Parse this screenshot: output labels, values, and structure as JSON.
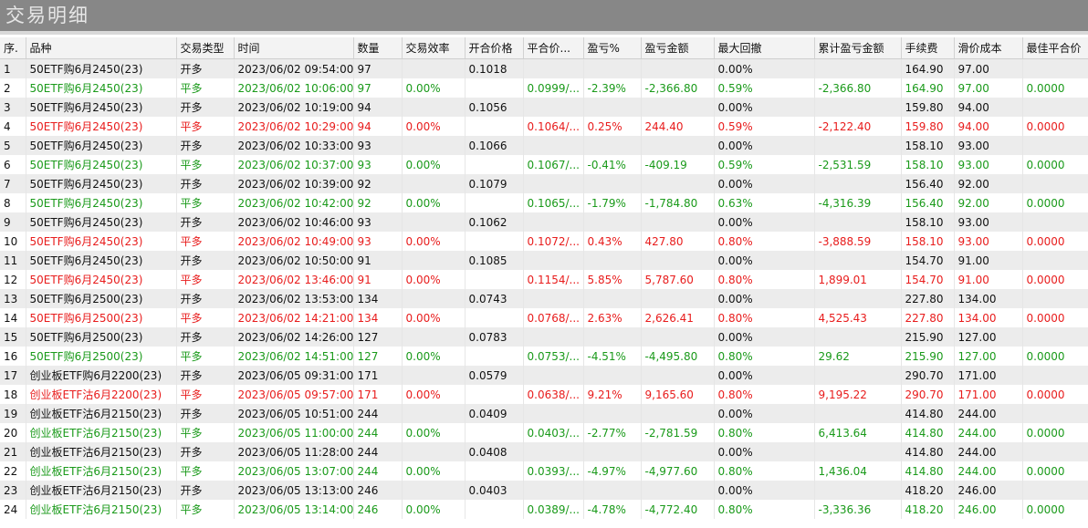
{
  "window": {
    "title": "交易明细"
  },
  "colors": {
    "green": "#1a9a1a",
    "red": "#e81c1c",
    "black": "#111111",
    "titlebar": "#878787"
  },
  "table": {
    "columns": [
      "序.",
      "品种",
      "交易类型",
      "时间",
      "数量",
      "交易效率",
      "开合价格",
      "平合价...",
      "盈亏%",
      "盈亏金额",
      "最大回撤",
      "累计盈亏金额",
      "手续费",
      "滑价成本",
      "最佳平合价"
    ],
    "rows": [
      {
        "seq": "1",
        "product": "50ETF购6月2450(23)",
        "type": "开多",
        "time": "2023/06/02 09:54:00",
        "qty": "97",
        "eff": "",
        "open": "0.1018",
        "close": "",
        "pct": "",
        "amount": "",
        "dd": "0.00%",
        "cum": "",
        "fee": "164.90",
        "slip": "97.00",
        "best": "",
        "color": "black"
      },
      {
        "seq": "2",
        "product": "50ETF购6月2450(23)",
        "type": "平多",
        "time": "2023/06/02 10:06:00",
        "qty": "97",
        "eff": "0.00%",
        "open": "",
        "close": "0.0999/...",
        "pct": "-2.39%",
        "amount": "-2,366.80",
        "dd": "0.59%",
        "cum": "-2,366.80",
        "fee": "164.90",
        "slip": "97.00",
        "best": "0.0000",
        "color": "green"
      },
      {
        "seq": "3",
        "product": "50ETF购6月2450(23)",
        "type": "开多",
        "time": "2023/06/02 10:19:00",
        "qty": "94",
        "eff": "",
        "open": "0.1056",
        "close": "",
        "pct": "",
        "amount": "",
        "dd": "0.00%",
        "cum": "",
        "fee": "159.80",
        "slip": "94.00",
        "best": "",
        "color": "black"
      },
      {
        "seq": "4",
        "product": "50ETF购6月2450(23)",
        "type": "平多",
        "time": "2023/06/02 10:29:00",
        "qty": "94",
        "eff": "0.00%",
        "open": "",
        "close": "0.1064/...",
        "pct": "0.25%",
        "amount": "244.40",
        "dd": "0.59%",
        "cum": "-2,122.40",
        "fee": "159.80",
        "slip": "94.00",
        "best": "0.0000",
        "color": "red"
      },
      {
        "seq": "5",
        "product": "50ETF购6月2450(23)",
        "type": "开多",
        "time": "2023/06/02 10:33:00",
        "qty": "93",
        "eff": "",
        "open": "0.1066",
        "close": "",
        "pct": "",
        "amount": "",
        "dd": "0.00%",
        "cum": "",
        "fee": "158.10",
        "slip": "93.00",
        "best": "",
        "color": "black"
      },
      {
        "seq": "6",
        "product": "50ETF购6月2450(23)",
        "type": "平多",
        "time": "2023/06/02 10:37:00",
        "qty": "93",
        "eff": "0.00%",
        "open": "",
        "close": "0.1067/...",
        "pct": "-0.41%",
        "amount": "-409.19",
        "dd": "0.59%",
        "cum": "-2,531.59",
        "fee": "158.10",
        "slip": "93.00",
        "best": "0.0000",
        "color": "green"
      },
      {
        "seq": "7",
        "product": "50ETF购6月2450(23)",
        "type": "开多",
        "time": "2023/06/02 10:39:00",
        "qty": "92",
        "eff": "",
        "open": "0.1079",
        "close": "",
        "pct": "",
        "amount": "",
        "dd": "0.00%",
        "cum": "",
        "fee": "156.40",
        "slip": "92.00",
        "best": "",
        "color": "black"
      },
      {
        "seq": "8",
        "product": "50ETF购6月2450(23)",
        "type": "平多",
        "time": "2023/06/02 10:42:00",
        "qty": "92",
        "eff": "0.00%",
        "open": "",
        "close": "0.1065/...",
        "pct": "-1.79%",
        "amount": "-1,784.80",
        "dd": "0.63%",
        "cum": "-4,316.39",
        "fee": "156.40",
        "slip": "92.00",
        "best": "0.0000",
        "color": "green"
      },
      {
        "seq": "9",
        "product": "50ETF购6月2450(23)",
        "type": "开多",
        "time": "2023/06/02 10:46:00",
        "qty": "93",
        "eff": "",
        "open": "0.1062",
        "close": "",
        "pct": "",
        "amount": "",
        "dd": "0.00%",
        "cum": "",
        "fee": "158.10",
        "slip": "93.00",
        "best": "",
        "color": "black"
      },
      {
        "seq": "10",
        "product": "50ETF购6月2450(23)",
        "type": "平多",
        "time": "2023/06/02 10:49:00",
        "qty": "93",
        "eff": "0.00%",
        "open": "",
        "close": "0.1072/...",
        "pct": "0.43%",
        "amount": "427.80",
        "dd": "0.80%",
        "cum": "-3,888.59",
        "fee": "158.10",
        "slip": "93.00",
        "best": "0.0000",
        "color": "red"
      },
      {
        "seq": "11",
        "product": "50ETF购6月2450(23)",
        "type": "开多",
        "time": "2023/06/02 10:50:00",
        "qty": "91",
        "eff": "",
        "open": "0.1085",
        "close": "",
        "pct": "",
        "amount": "",
        "dd": "0.00%",
        "cum": "",
        "fee": "154.70",
        "slip": "91.00",
        "best": "",
        "color": "black"
      },
      {
        "seq": "12",
        "product": "50ETF购6月2450(23)",
        "type": "平多",
        "time": "2023/06/02 13:46:00",
        "qty": "91",
        "eff": "0.00%",
        "open": "",
        "close": "0.1154/...",
        "pct": "5.85%",
        "amount": "5,787.60",
        "dd": "0.80%",
        "cum": "1,899.01",
        "fee": "154.70",
        "slip": "91.00",
        "best": "0.0000",
        "color": "red"
      },
      {
        "seq": "13",
        "product": "50ETF购6月2500(23)",
        "type": "开多",
        "time": "2023/06/02 13:53:00",
        "qty": "134",
        "eff": "",
        "open": "0.0743",
        "close": "",
        "pct": "",
        "amount": "",
        "dd": "0.00%",
        "cum": "",
        "fee": "227.80",
        "slip": "134.00",
        "best": "",
        "color": "black"
      },
      {
        "seq": "14",
        "product": "50ETF购6月2500(23)",
        "type": "平多",
        "time": "2023/06/02 14:21:00",
        "qty": "134",
        "eff": "0.00%",
        "open": "",
        "close": "0.0768/...",
        "pct": "2.63%",
        "amount": "2,626.41",
        "dd": "0.80%",
        "cum": "4,525.43",
        "fee": "227.80",
        "slip": "134.00",
        "best": "0.0000",
        "color": "red"
      },
      {
        "seq": "15",
        "product": "50ETF购6月2500(23)",
        "type": "开多",
        "time": "2023/06/02 14:26:00",
        "qty": "127",
        "eff": "",
        "open": "0.0783",
        "close": "",
        "pct": "",
        "amount": "",
        "dd": "0.00%",
        "cum": "",
        "fee": "215.90",
        "slip": "127.00",
        "best": "",
        "color": "black"
      },
      {
        "seq": "16",
        "product": "50ETF购6月2500(23)",
        "type": "平多",
        "time": "2023/06/02 14:51:00",
        "qty": "127",
        "eff": "0.00%",
        "open": "",
        "close": "0.0753/...",
        "pct": "-4.51%",
        "amount": "-4,495.80",
        "dd": "0.80%",
        "cum": "29.62",
        "fee": "215.90",
        "slip": "127.00",
        "best": "0.0000",
        "color": "green"
      },
      {
        "seq": "17",
        "product": "创业板ETF购6月2200(23)",
        "type": "开多",
        "time": "2023/06/05 09:31:00",
        "qty": "171",
        "eff": "",
        "open": "0.0579",
        "close": "",
        "pct": "",
        "amount": "",
        "dd": "0.00%",
        "cum": "",
        "fee": "290.70",
        "slip": "171.00",
        "best": "",
        "color": "black"
      },
      {
        "seq": "18",
        "product": "创业板ETF沽6月2200(23)",
        "type": "平多",
        "time": "2023/06/05 09:57:00",
        "qty": "171",
        "eff": "0.00%",
        "open": "",
        "close": "0.0638/...",
        "pct": "9.21%",
        "amount": "9,165.60",
        "dd": "0.80%",
        "cum": "9,195.22",
        "fee": "290.70",
        "slip": "171.00",
        "best": "0.0000",
        "color": "red"
      },
      {
        "seq": "19",
        "product": "创业板ETF沽6月2150(23)",
        "type": "开多",
        "time": "2023/06/05 10:51:00",
        "qty": "244",
        "eff": "",
        "open": "0.0409",
        "close": "",
        "pct": "",
        "amount": "",
        "dd": "0.00%",
        "cum": "",
        "fee": "414.80",
        "slip": "244.00",
        "best": "",
        "color": "black"
      },
      {
        "seq": "20",
        "product": "创业板ETF沽6月2150(23)",
        "type": "平多",
        "time": "2023/06/05 11:00:00",
        "qty": "244",
        "eff": "0.00%",
        "open": "",
        "close": "0.0403/...",
        "pct": "-2.77%",
        "amount": "-2,781.59",
        "dd": "0.80%",
        "cum": "6,413.64",
        "fee": "414.80",
        "slip": "244.00",
        "best": "0.0000",
        "color": "green"
      },
      {
        "seq": "21",
        "product": "创业板ETF沽6月2150(23)",
        "type": "开多",
        "time": "2023/06/05 11:28:00",
        "qty": "244",
        "eff": "",
        "open": "0.0408",
        "close": "",
        "pct": "",
        "amount": "",
        "dd": "0.00%",
        "cum": "",
        "fee": "414.80",
        "slip": "244.00",
        "best": "",
        "color": "black"
      },
      {
        "seq": "22",
        "product": "创业板ETF沽6月2150(23)",
        "type": "平多",
        "time": "2023/06/05 13:07:00",
        "qty": "244",
        "eff": "0.00%",
        "open": "",
        "close": "0.0393/...",
        "pct": "-4.97%",
        "amount": "-4,977.60",
        "dd": "0.80%",
        "cum": "1,436.04",
        "fee": "414.80",
        "slip": "244.00",
        "best": "0.0000",
        "color": "green"
      },
      {
        "seq": "23",
        "product": "创业板ETF沽6月2150(23)",
        "type": "开多",
        "time": "2023/06/05 13:13:00",
        "qty": "246",
        "eff": "",
        "open": "0.0403",
        "close": "",
        "pct": "",
        "amount": "",
        "dd": "0.00%",
        "cum": "",
        "fee": "418.20",
        "slip": "246.00",
        "best": "",
        "color": "black"
      },
      {
        "seq": "24",
        "product": "创业板ETF沽6月2150(23)",
        "type": "平多",
        "time": "2023/06/05 13:14:00",
        "qty": "246",
        "eff": "0.00%",
        "open": "",
        "close": "0.0389/...",
        "pct": "-4.78%",
        "amount": "-4,772.40",
        "dd": "0.80%",
        "cum": "-3,336.36",
        "fee": "418.20",
        "slip": "246.00",
        "best": "0.0000",
        "color": "green"
      }
    ]
  }
}
